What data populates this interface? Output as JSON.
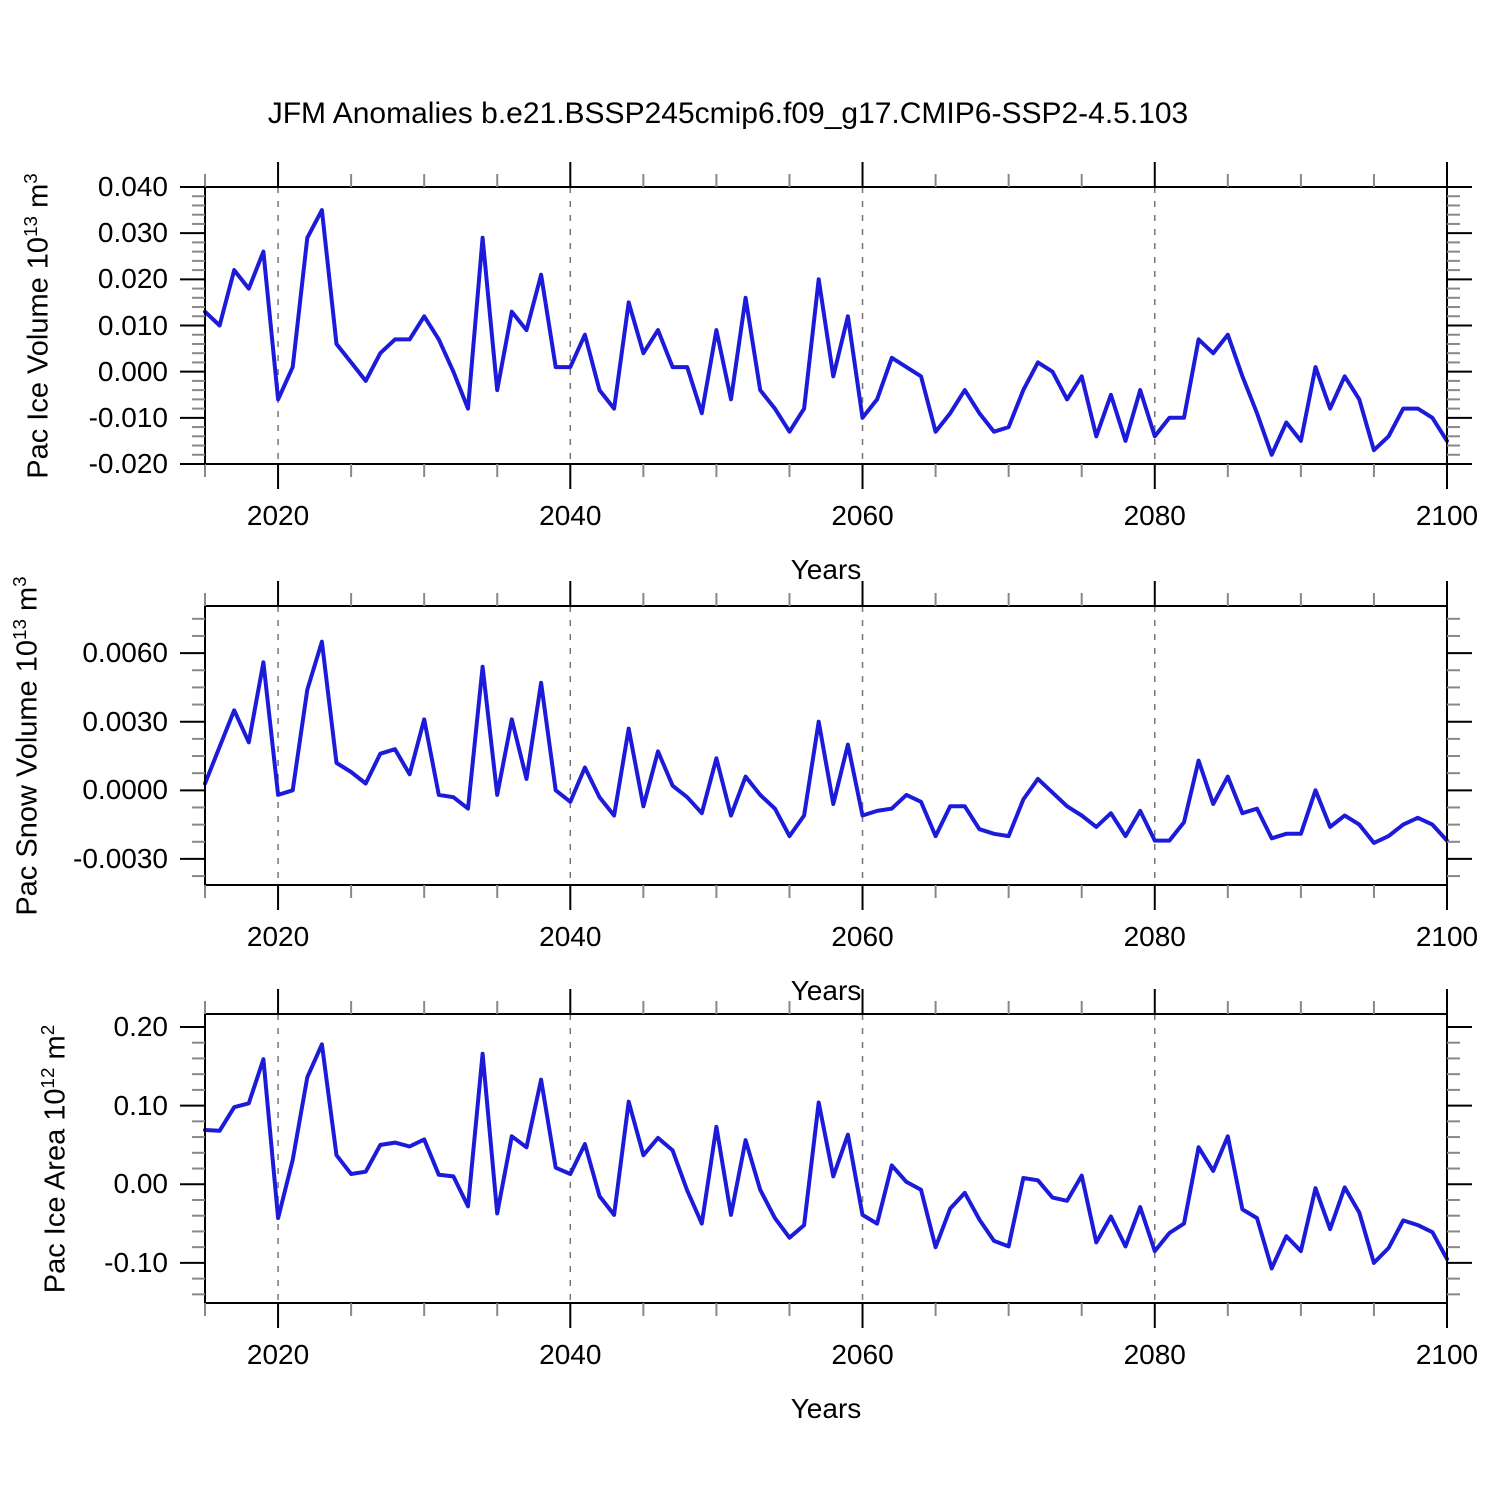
{
  "title": "JFM Anomalies b.e21.BSSP245cmip6.f09_g17.CMIP6-SSP2-4.5.103",
  "colors": {
    "line": "#1b1bd9",
    "axis": "#000000",
    "minor_tick": "#888888",
    "grid": "#777777",
    "background": "#ffffff"
  },
  "chart_data": [
    {
      "type": "line",
      "ylabel_text": "Pac Ice Volume 10^13 m^3",
      "ylabel_parts": [
        {
          "t": "Pac Ice Volume 10",
          "sup": false
        },
        {
          "t": "13",
          "sup": true
        },
        {
          "t": " m",
          "sup": false
        },
        {
          "t": "3",
          "sup": true
        }
      ],
      "xlabel": "Years",
      "x_range": [
        2015,
        2100
      ],
      "x_step": 1,
      "values": [
        0.013,
        0.01,
        0.022,
        0.018,
        0.026,
        -0.006,
        0.001,
        0.029,
        0.035,
        0.006,
        0.002,
        -0.002,
        0.004,
        0.007,
        0.007,
        0.012,
        0.007,
        0.0,
        -0.008,
        0.029,
        -0.004,
        0.013,
        0.009,
        0.021,
        0.001,
        0.001,
        0.008,
        -0.004,
        -0.008,
        0.015,
        0.004,
        0.009,
        0.001,
        0.001,
        -0.009,
        0.009,
        -0.006,
        0.016,
        -0.004,
        -0.008,
        -0.013,
        -0.008,
        0.02,
        -0.001,
        0.012,
        -0.01,
        -0.006,
        0.003,
        0.001,
        -0.001,
        -0.013,
        -0.009,
        -0.004,
        -0.009,
        -0.013,
        -0.012,
        -0.004,
        0.002,
        0.0,
        -0.006,
        -0.001,
        -0.014,
        -0.005,
        -0.015,
        -0.004,
        -0.014,
        -0.01,
        -0.01,
        0.007,
        0.004,
        0.008,
        -0.001,
        -0.009,
        -0.018,
        -0.011,
        -0.015,
        0.001,
        -0.008,
        -0.001,
        -0.006,
        -0.017,
        -0.014,
        -0.008,
        -0.008,
        -0.01,
        -0.015
      ],
      "ylim": [
        -0.02,
        0.04
      ],
      "yticks": [
        {
          "v": 0.04,
          "label": "0.040"
        },
        {
          "v": 0.03,
          "label": "0.030"
        },
        {
          "v": 0.02,
          "label": "0.020"
        },
        {
          "v": 0.01,
          "label": "0.010"
        },
        {
          "v": 0.0,
          "label": "0.000"
        },
        {
          "v": -0.01,
          "label": "-0.010"
        },
        {
          "v": -0.02,
          "label": "-0.020"
        }
      ],
      "y_minor_step": 0.002,
      "xticks": [
        {
          "v": 2020,
          "label": "2020"
        },
        {
          "v": 2040,
          "label": "2040"
        },
        {
          "v": 2060,
          "label": "2060"
        },
        {
          "v": 2080,
          "label": "2080"
        },
        {
          "v": 2100,
          "label": "2100"
        }
      ],
      "x_minor_step": 5,
      "grid_years": [
        2020,
        2040,
        2060,
        2080
      ],
      "grid_on": true,
      "legend": "none"
    },
    {
      "type": "line",
      "ylabel_text": "Pac Snow Volume 10^13 m^3",
      "ylabel_parts": [
        {
          "t": "Pac Snow Volume 10",
          "sup": false
        },
        {
          "t": "13",
          "sup": true
        },
        {
          "t": " m",
          "sup": false
        },
        {
          "t": "3",
          "sup": true
        }
      ],
      "xlabel": "Years",
      "x_range": [
        2015,
        2100
      ],
      "x_step": 1,
      "values": [
        0.0003,
        0.0019,
        0.0035,
        0.0021,
        0.0056,
        -0.0002,
        0.0,
        0.0044,
        0.0065,
        0.0012,
        0.0008,
        0.0003,
        0.0016,
        0.0018,
        0.0007,
        0.0031,
        -0.0002,
        -0.0003,
        -0.0008,
        0.0054,
        -0.0002,
        0.0031,
        0.0005,
        0.0047,
        0.0,
        -0.0005,
        0.001,
        -0.0003,
        -0.0011,
        0.0027,
        -0.0007,
        0.0017,
        0.0002,
        -0.0003,
        -0.001,
        0.0014,
        -0.0011,
        0.0006,
        -0.0002,
        -0.0008,
        -0.002,
        -0.0011,
        0.003,
        -0.0006,
        0.002,
        -0.0011,
        -0.0009,
        -0.0008,
        -0.0002,
        -0.0005,
        -0.002,
        -0.0007,
        -0.0007,
        -0.0017,
        -0.0019,
        -0.002,
        -0.0004,
        0.0005,
        -0.0001,
        -0.0007,
        -0.0011,
        -0.0016,
        -0.001,
        -0.002,
        -0.0009,
        -0.0022,
        -0.0022,
        -0.0014,
        0.0013,
        -0.0006,
        0.0006,
        -0.001,
        -0.0008,
        -0.0021,
        -0.0019,
        -0.0019,
        0.0,
        -0.0016,
        -0.0011,
        -0.0015,
        -0.0023,
        -0.002,
        -0.0015,
        -0.0012,
        -0.0015,
        -0.0022
      ],
      "ylim": [
        -0.00414,
        0.00806
      ],
      "yticks": [
        {
          "v": 0.006,
          "label": "0.0060"
        },
        {
          "v": 0.003,
          "label": "0.0030"
        },
        {
          "v": 0.0,
          "label": "0.0000"
        },
        {
          "v": -0.003,
          "label": "-0.0030"
        }
      ],
      "y_minor_step": 0.00075,
      "xticks": [
        {
          "v": 2020,
          "label": "2020"
        },
        {
          "v": 2040,
          "label": "2040"
        },
        {
          "v": 2060,
          "label": "2060"
        },
        {
          "v": 2080,
          "label": "2080"
        },
        {
          "v": 2100,
          "label": "2100"
        }
      ],
      "x_minor_step": 5,
      "grid_years": [
        2020,
        2040,
        2060,
        2080
      ],
      "grid_on": true,
      "legend": "none"
    },
    {
      "type": "line",
      "ylabel_text": "Pac Ice Area 10^12 m^2",
      "ylabel_parts": [
        {
          "t": "Pac Ice Area 10",
          "sup": false
        },
        {
          "t": "12",
          "sup": true
        },
        {
          "t": " m",
          "sup": false
        },
        {
          "t": "2",
          "sup": true
        }
      ],
      "xlabel": "Years",
      "x_range": [
        2015,
        2100
      ],
      "x_step": 1,
      "values": [
        0.069,
        0.068,
        0.098,
        0.103,
        0.159,
        -0.043,
        0.031,
        0.136,
        0.178,
        0.037,
        0.013,
        0.016,
        0.05,
        0.053,
        0.048,
        0.057,
        0.012,
        0.01,
        -0.028,
        0.166,
        -0.037,
        0.061,
        0.047,
        0.133,
        0.021,
        0.013,
        0.051,
        -0.015,
        -0.039,
        0.105,
        0.037,
        0.059,
        0.043,
        -0.008,
        -0.05,
        0.073,
        -0.039,
        0.056,
        -0.007,
        -0.043,
        -0.068,
        -0.052,
        0.104,
        0.01,
        0.063,
        -0.039,
        -0.05,
        0.024,
        0.003,
        -0.007,
        -0.08,
        -0.031,
        -0.011,
        -0.045,
        -0.072,
        -0.079,
        0.008,
        0.005,
        -0.017,
        -0.021,
        0.011,
        -0.074,
        -0.041,
        -0.079,
        -0.029,
        -0.085,
        -0.062,
        -0.05,
        0.047,
        0.017,
        0.061,
        -0.032,
        -0.043,
        -0.107,
        -0.066,
        -0.085,
        -0.005,
        -0.057,
        -0.004,
        -0.036,
        -0.1,
        -0.081,
        -0.046,
        -0.052,
        -0.061,
        -0.095
      ],
      "ylim": [
        -0.151,
        0.2165
      ],
      "yticks": [
        {
          "v": 0.2,
          "label": "0.20"
        },
        {
          "v": 0.1,
          "label": "0.10"
        },
        {
          "v": 0.0,
          "label": "0.00"
        },
        {
          "v": -0.1,
          "label": "-0.10"
        }
      ],
      "y_minor_step": 0.02,
      "xticks": [
        {
          "v": 2020,
          "label": "2020"
        },
        {
          "v": 2040,
          "label": "2040"
        },
        {
          "v": 2060,
          "label": "2060"
        },
        {
          "v": 2080,
          "label": "2080"
        },
        {
          "v": 2100,
          "label": "2100"
        }
      ],
      "x_minor_step": 5,
      "grid_years": [
        2020,
        2040,
        2060,
        2080
      ],
      "grid_on": true,
      "legend": "none"
    }
  ]
}
